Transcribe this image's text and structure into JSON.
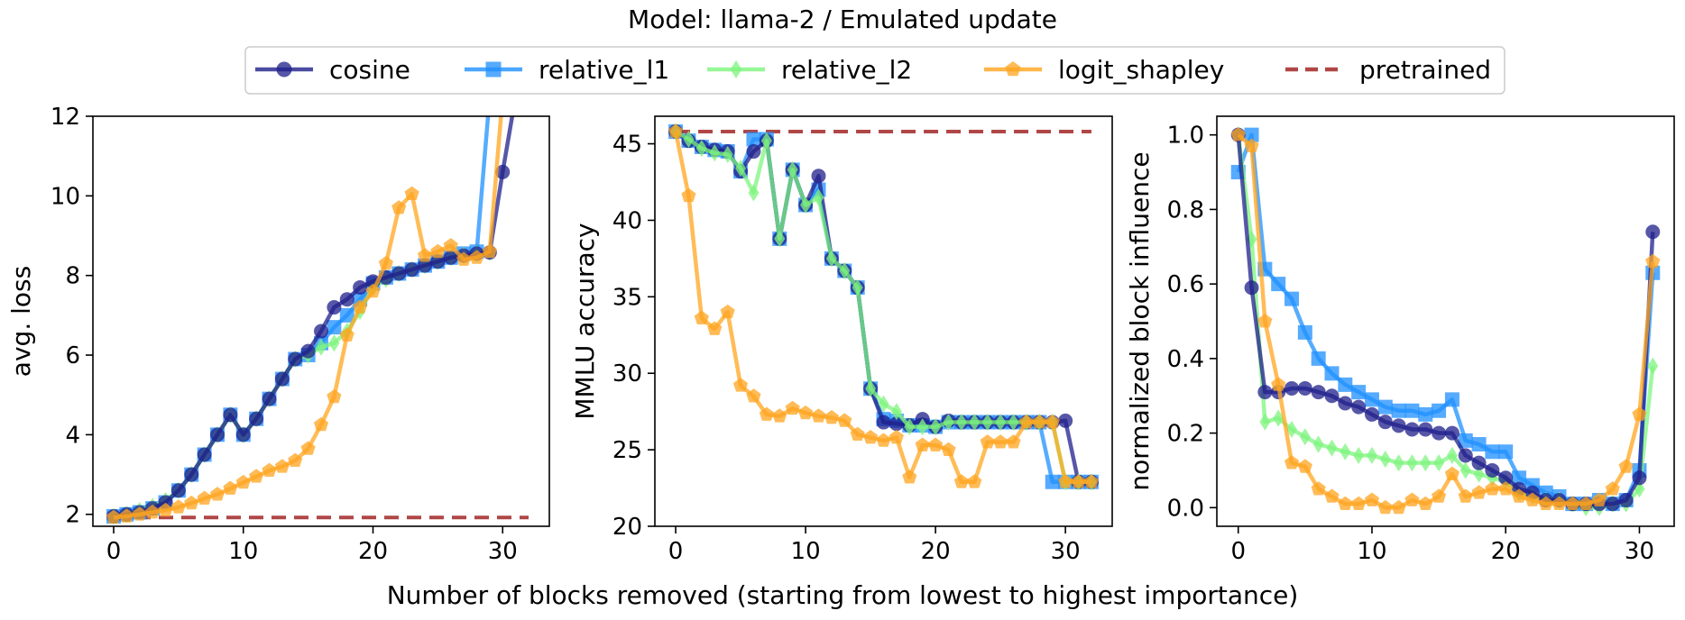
{
  "figure": {
    "suptitle": "Model: llama-2 / Emulated update",
    "supxlabel": "Number of blocks removed (starting from lowest to highest importance)"
  },
  "legend": {
    "placement": "top-center",
    "entries": [
      {
        "name": "cosine",
        "color": "#1f1f8c",
        "marker": "circle",
        "dashed": false
      },
      {
        "name": "relative_l1",
        "color": "#1e90ff",
        "marker": "square",
        "dashed": false
      },
      {
        "name": "relative_l2",
        "color": "#7ef57e",
        "marker": "diamond",
        "dashed": false
      },
      {
        "name": "logit_shapley",
        "color": "#ffa51f",
        "marker": "pentagon",
        "dashed": false
      },
      {
        "name": "pretrained",
        "color": "#a83232",
        "marker": "none",
        "dashed": true
      }
    ]
  },
  "chart_data": [
    {
      "type": "line",
      "ylabel": "avg. loss",
      "xlabel": "",
      "xlim": [
        -1.6,
        33.6
      ],
      "ylim": [
        1.7,
        12
      ],
      "xticks": [
        0,
        10,
        20,
        30
      ],
      "yticks": [
        2,
        4,
        6,
        8,
        10,
        12
      ],
      "grid": false,
      "series": [
        {
          "name": "pretrained",
          "kind": "hline",
          "y": 1.92,
          "x": [
            0,
            32
          ]
        },
        {
          "name": "relative_l1",
          "x": [
            0,
            1,
            2,
            3,
            4,
            5,
            6,
            7,
            8,
            9,
            10,
            11,
            12,
            13,
            14,
            15,
            16,
            17,
            18,
            19,
            20,
            21,
            22,
            23,
            24,
            25,
            26,
            27,
            28,
            29
          ],
          "y": [
            1.95,
            2.0,
            2.05,
            2.15,
            2.3,
            2.6,
            3.0,
            3.5,
            4.0,
            4.5,
            4.0,
            4.4,
            4.9,
            5.4,
            5.9,
            6.0,
            6.3,
            6.7,
            7.0,
            7.4,
            7.8,
            7.95,
            8.05,
            8.15,
            8.25,
            8.35,
            8.45,
            8.55,
            8.6,
            12.5
          ]
        },
        {
          "name": "relative_l2",
          "x": [
            0,
            1,
            2,
            3,
            4,
            5,
            6,
            7,
            8,
            9,
            10,
            11,
            12,
            13,
            14,
            15,
            16,
            17,
            18,
            19,
            20,
            21,
            22,
            23,
            24,
            25,
            26,
            27,
            28,
            29
          ],
          "y": [
            1.95,
            2.0,
            2.1,
            2.2,
            2.35,
            2.6,
            3.0,
            3.5,
            4.0,
            4.5,
            4.0,
            4.4,
            4.9,
            5.4,
            5.9,
            6.0,
            6.2,
            6.3,
            6.6,
            7.1,
            7.7,
            7.9,
            8.05,
            8.15,
            8.25,
            8.35,
            8.45,
            8.5,
            8.55,
            8.58
          ]
        },
        {
          "name": "cosine",
          "x": [
            0,
            1,
            2,
            3,
            4,
            5,
            6,
            7,
            8,
            9,
            10,
            11,
            12,
            13,
            14,
            15,
            16,
            17,
            18,
            19,
            20,
            21,
            22,
            23,
            24,
            25,
            26,
            27,
            28,
            29,
            30,
            31
          ],
          "y": [
            1.95,
            2.0,
            2.05,
            2.15,
            2.3,
            2.6,
            3.0,
            3.5,
            4.0,
            4.5,
            4.0,
            4.4,
            4.9,
            5.4,
            5.9,
            6.1,
            6.6,
            7.2,
            7.4,
            7.7,
            7.85,
            7.95,
            8.05,
            8.15,
            8.25,
            8.35,
            8.45,
            8.5,
            8.55,
            8.58,
            10.6,
            12.5
          ]
        },
        {
          "name": "logit_shapley",
          "x": [
            0,
            1,
            2,
            3,
            4,
            5,
            6,
            7,
            8,
            9,
            10,
            11,
            12,
            13,
            14,
            15,
            16,
            17,
            18,
            19,
            20,
            21,
            22,
            23,
            24,
            25,
            26,
            27,
            28,
            29,
            30
          ],
          "y": [
            1.92,
            1.95,
            2.0,
            2.05,
            2.1,
            2.18,
            2.28,
            2.4,
            2.5,
            2.65,
            2.8,
            2.95,
            3.1,
            3.2,
            3.35,
            3.65,
            4.25,
            4.95,
            6.5,
            7.2,
            7.6,
            8.3,
            9.7,
            10.05,
            8.5,
            8.6,
            8.75,
            8.4,
            8.45,
            8.6,
            12.5
          ]
        }
      ]
    },
    {
      "type": "line",
      "ylabel": "MMLU accuracy",
      "xlabel": "",
      "xlim": [
        -1.6,
        33.6
      ],
      "ylim": [
        20,
        46.8
      ],
      "xticks": [
        0,
        10,
        20,
        30
      ],
      "yticks": [
        20,
        25,
        30,
        35,
        40,
        45
      ],
      "grid": false,
      "series": [
        {
          "name": "pretrained",
          "kind": "hline",
          "y": 45.8,
          "x": [
            0,
            32
          ]
        },
        {
          "name": "relative_l1",
          "x": [
            0,
            1,
            2,
            3,
            4,
            5,
            6,
            7,
            8,
            9,
            10,
            11,
            12,
            13,
            14,
            15,
            16,
            17,
            18,
            19,
            20,
            21,
            22,
            23,
            24,
            25,
            26,
            27,
            28,
            29,
            30,
            31,
            32
          ],
          "y": [
            45.8,
            45.2,
            44.8,
            44.6,
            44.5,
            43.2,
            45.3,
            45.3,
            38.8,
            43.3,
            41.0,
            42.0,
            37.5,
            36.7,
            35.6,
            29.0,
            27.0,
            26.9,
            26.6,
            26.6,
            26.5,
            26.8,
            26.8,
            26.8,
            26.8,
            26.8,
            26.8,
            26.8,
            26.8,
            22.9,
            22.9,
            22.9,
            22.9
          ]
        },
        {
          "name": "cosine",
          "x": [
            0,
            1,
            2,
            3,
            4,
            5,
            6,
            7,
            8,
            9,
            10,
            11,
            12,
            13,
            14,
            15,
            16,
            17,
            18,
            19,
            20,
            21,
            22,
            23,
            24,
            25,
            26,
            27,
            28,
            29,
            30,
            31,
            32
          ],
          "y": [
            45.8,
            45.2,
            44.8,
            44.6,
            44.5,
            43.2,
            44.5,
            45.2,
            38.8,
            43.3,
            41.0,
            42.9,
            37.5,
            36.7,
            35.6,
            29.0,
            26.8,
            26.7,
            26.6,
            27.0,
            26.5,
            26.9,
            26.8,
            26.8,
            26.8,
            26.8,
            26.8,
            26.8,
            26.8,
            26.8,
            26.9,
            22.9,
            22.9
          ]
        },
        {
          "name": "relative_l2",
          "x": [
            0,
            1,
            2,
            3,
            4,
            5,
            6,
            7,
            8,
            9,
            10,
            11,
            12,
            13,
            14,
            15,
            16,
            17,
            18,
            19,
            20,
            21,
            22,
            23,
            24,
            25,
            26,
            27,
            28,
            29,
            30,
            31,
            32
          ],
          "y": [
            45.8,
            45.3,
            44.7,
            44.4,
            44.3,
            43.4,
            41.8,
            45.2,
            38.8,
            43.3,
            41.0,
            41.5,
            37.5,
            36.7,
            35.6,
            29.0,
            28.0,
            27.5,
            26.5,
            26.5,
            26.5,
            26.8,
            26.8,
            26.8,
            26.8,
            26.8,
            26.8,
            26.8,
            26.8,
            26.8,
            22.9,
            22.9,
            22.9
          ]
        },
        {
          "name": "logit_shapley",
          "x": [
            0,
            1,
            2,
            3,
            4,
            5,
            6,
            7,
            8,
            9,
            10,
            11,
            12,
            13,
            14,
            15,
            16,
            17,
            18,
            19,
            20,
            21,
            22,
            23,
            24,
            25,
            26,
            27,
            28,
            29,
            30,
            31,
            32
          ],
          "y": [
            45.8,
            41.6,
            33.6,
            32.9,
            34.0,
            29.2,
            28.5,
            27.3,
            27.2,
            27.7,
            27.4,
            27.2,
            27.1,
            26.9,
            26.0,
            25.8,
            25.6,
            25.8,
            23.2,
            25.3,
            25.3,
            25.0,
            22.9,
            22.9,
            25.5,
            25.5,
            25.5,
            26.8,
            26.8,
            26.8,
            22.9,
            22.9,
            22.9
          ]
        }
      ]
    },
    {
      "type": "line",
      "ylabel": "normalized block influence",
      "xlabel": "",
      "xlim": [
        -1.6,
        32.6
      ],
      "ylim": [
        -0.05,
        1.05
      ],
      "xticks": [
        0,
        10,
        20,
        30
      ],
      "yticks": [
        0.0,
        0.2,
        0.4,
        0.6,
        0.8,
        1.0
      ],
      "ytick_labels": [
        "0.0",
        "0.2",
        "0.4",
        "0.6",
        "0.8",
        "1.0"
      ],
      "grid": false,
      "series": [
        {
          "name": "relative_l1",
          "x": [
            0,
            1,
            2,
            3,
            4,
            5,
            6,
            7,
            8,
            9,
            10,
            11,
            12,
            13,
            14,
            15,
            16,
            17,
            18,
            19,
            20,
            21,
            22,
            23,
            24,
            25,
            26,
            27,
            28,
            29,
            30,
            31
          ],
          "y": [
            0.9,
            1.0,
            0.64,
            0.6,
            0.56,
            0.47,
            0.4,
            0.36,
            0.33,
            0.31,
            0.29,
            0.27,
            0.26,
            0.26,
            0.25,
            0.26,
            0.29,
            0.18,
            0.17,
            0.15,
            0.15,
            0.08,
            0.06,
            0.04,
            0.03,
            0.01,
            0.01,
            0.02,
            0.01,
            0.02,
            0.1,
            0.63
          ]
        },
        {
          "name": "relative_l2",
          "x": [
            0,
            1,
            2,
            3,
            4,
            5,
            6,
            7,
            8,
            9,
            10,
            11,
            12,
            13,
            14,
            15,
            16,
            17,
            18,
            19,
            20,
            21,
            22,
            23,
            24,
            25,
            26,
            27,
            28,
            29,
            30,
            31
          ],
          "y": [
            1.0,
            0.72,
            0.23,
            0.24,
            0.21,
            0.19,
            0.17,
            0.16,
            0.15,
            0.14,
            0.14,
            0.13,
            0.12,
            0.12,
            0.12,
            0.12,
            0.14,
            0.1,
            0.09,
            0.08,
            0.07,
            0.04,
            0.03,
            0.02,
            0.02,
            0.01,
            0.0,
            0.0,
            0.01,
            0.01,
            0.05,
            0.38
          ]
        },
        {
          "name": "cosine",
          "x": [
            0,
            1,
            2,
            3,
            4,
            5,
            6,
            7,
            8,
            9,
            10,
            11,
            12,
            13,
            14,
            15,
            16,
            17,
            18,
            19,
            20,
            21,
            22,
            23,
            24,
            25,
            26,
            27,
            28,
            29,
            30,
            31
          ],
          "y": [
            1.0,
            0.59,
            0.31,
            0.31,
            0.32,
            0.32,
            0.31,
            0.3,
            0.28,
            0.27,
            0.25,
            0.23,
            0.22,
            0.21,
            0.21,
            0.2,
            0.2,
            0.14,
            0.12,
            0.1,
            0.08,
            0.05,
            0.04,
            0.02,
            0.02,
            0.01,
            0.01,
            0.01,
            0.01,
            0.02,
            0.08,
            0.74
          ]
        },
        {
          "name": "logit_shapley",
          "x": [
            0,
            1,
            2,
            3,
            4,
            5,
            6,
            7,
            8,
            9,
            10,
            11,
            12,
            13,
            14,
            15,
            16,
            17,
            18,
            19,
            20,
            21,
            22,
            23,
            24,
            25,
            26,
            27,
            28,
            29,
            30,
            31
          ],
          "y": [
            1.0,
            0.97,
            0.5,
            0.33,
            0.12,
            0.11,
            0.05,
            0.03,
            0.01,
            0.01,
            0.02,
            0.0,
            0.0,
            0.02,
            0.01,
            0.03,
            0.09,
            0.03,
            0.04,
            0.05,
            0.05,
            0.03,
            0.02,
            0.01,
            0.01,
            0.01,
            0.01,
            0.02,
            0.05,
            0.11,
            0.25,
            0.66
          ]
        }
      ]
    }
  ]
}
